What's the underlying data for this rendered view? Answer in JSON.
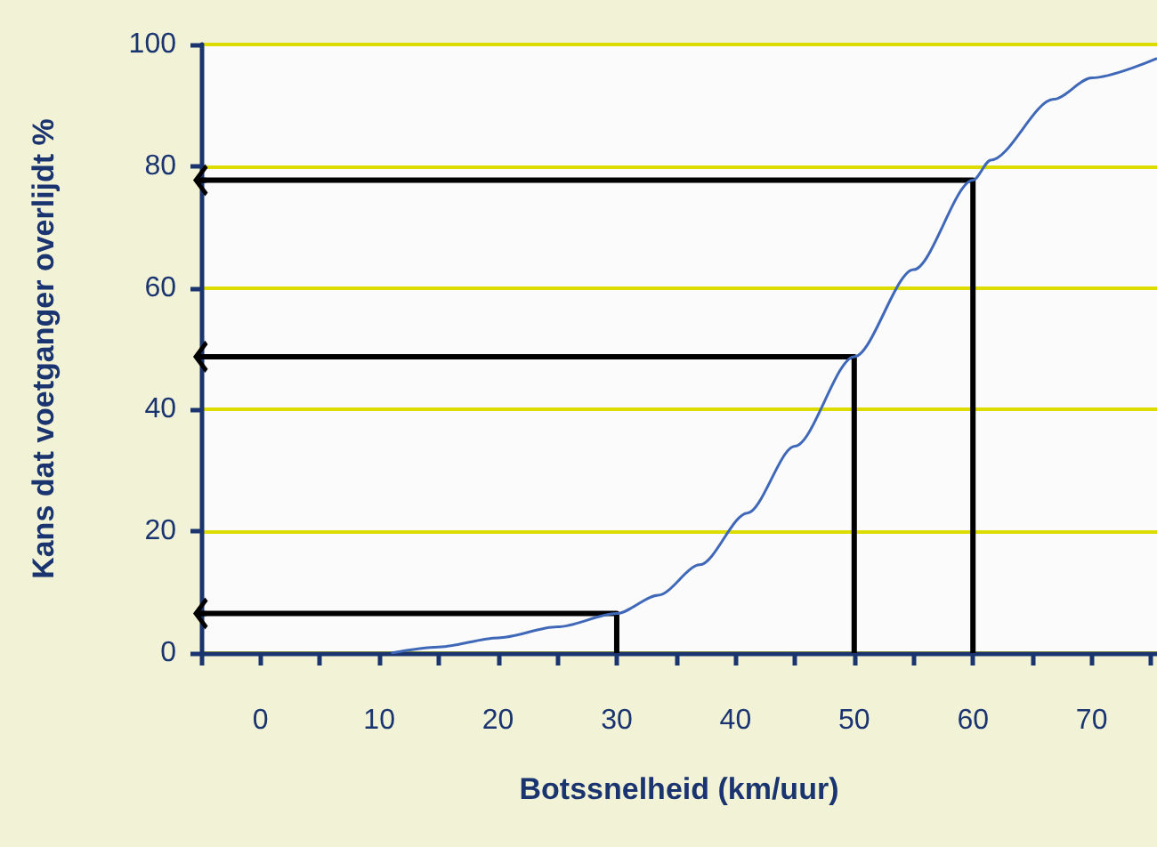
{
  "chart_data": {
    "type": "line",
    "xlabel": "Botssnelheid (km/uur)",
    "ylabel": "Kans dat voetganger overlijdt %",
    "xlim": [
      -5,
      75.5
    ],
    "xticks": [
      {
        "value": -5,
        "label": null
      },
      0,
      {
        "value": 5,
        "label": null
      },
      10,
      {
        "value": 15,
        "label": null
      },
      20,
      {
        "value": 25,
        "label": null
      },
      30,
      {
        "value": 35,
        "label": null
      },
      40,
      {
        "value": 45,
        "label": null
      },
      50,
      {
        "value": 55,
        "label": null
      },
      60,
      {
        "value": 65,
        "label": null
      },
      70,
      {
        "value": 75,
        "label": null
      }
    ],
    "ylim": [
      0,
      100
    ],
    "yticks": [
      0,
      20,
      40,
      60,
      80,
      100
    ],
    "grid": "y",
    "marker": "none",
    "series": [
      {
        "color": "#4068b8",
        "x": [
          11,
          15,
          20,
          25,
          30,
          33.5,
          37,
          41,
          45,
          50,
          55,
          60,
          61.5,
          66.8,
          70,
          75.5
        ],
        "values": [
          0,
          1,
          2.5,
          4.3,
          6.5,
          9.5,
          14.5,
          23,
          34,
          48.7,
          63,
          77.7,
          81,
          91,
          94.5,
          97.7
        ]
      },
      {
        "color": "#000000",
        "x": [
          30,
          30,
          -5
        ],
        "values": [
          0,
          6.5,
          6.5
        ]
      },
      {
        "color": "#000000",
        "x": [
          50,
          50,
          -5
        ],
        "values": [
          0,
          48.7,
          48.7
        ]
      },
      {
        "color": "#000000",
        "x": [
          60,
          60,
          -5
        ],
        "values": [
          0,
          77.7,
          77.7
        ]
      }
    ]
  }
}
